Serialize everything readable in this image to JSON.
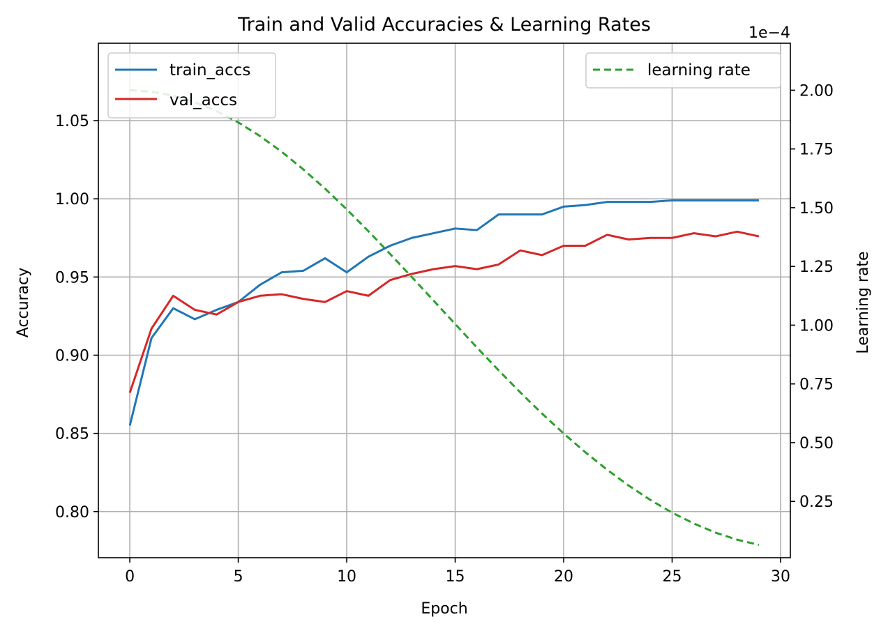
{
  "chart_data": {
    "type": "line",
    "title": "Train and Valid Accuracies & Learning Rates",
    "xlabel": "Epoch",
    "ylabel_left": "Accuracy",
    "ylabel_right": "Learning rate",
    "right_offset_text": "1e−4",
    "xlim": [
      -1.45,
      30.45
    ],
    "ylim_left": [
      0.7705,
      1.0995
    ],
    "ylim_right": [
      1.03e-06,
      0.00022
    ],
    "x_ticks": [
      0,
      5,
      10,
      15,
      20,
      25,
      30
    ],
    "x_tick_labels": [
      "0",
      "5",
      "10",
      "15",
      "20",
      "25",
      "30"
    ],
    "y_left_ticks": [
      0.8,
      0.85,
      0.9,
      0.95,
      1.0,
      1.05
    ],
    "y_left_tick_labels": [
      "0.80",
      "0.85",
      "0.90",
      "0.95",
      "1.00",
      "1.05"
    ],
    "y_right_ticks": [
      2.5e-05,
      5e-05,
      7.5e-05,
      0.0001,
      0.000125,
      0.00015,
      0.000175,
      0.0002
    ],
    "y_right_tick_labels": [
      "0.25",
      "0.50",
      "0.75",
      "1.00",
      "1.25",
      "1.50",
      "1.75",
      "2.00"
    ],
    "grid": true,
    "x": [
      0,
      1,
      2,
      3,
      4,
      5,
      6,
      7,
      8,
      9,
      10,
      11,
      12,
      13,
      14,
      15,
      16,
      17,
      18,
      19,
      20,
      21,
      22,
      23,
      24,
      25,
      26,
      27,
      28,
      29
    ],
    "series": [
      {
        "name": "train_accs",
        "axis": "left",
        "style": "solid",
        "color": "#1f77b4",
        "values": [
          0.855,
          0.911,
          0.93,
          0.923,
          0.929,
          0.934,
          0.945,
          0.953,
          0.954,
          0.962,
          0.953,
          0.963,
          0.97,
          0.975,
          0.978,
          0.981,
          0.98,
          0.99,
          0.99,
          0.99,
          0.995,
          0.996,
          0.998,
          0.998,
          0.998,
          0.999,
          0.999,
          0.999,
          0.999,
          0.999
        ]
      },
      {
        "name": "val_accs",
        "axis": "left",
        "style": "solid",
        "color": "#d62728",
        "values": [
          0.876,
          0.917,
          0.938,
          0.929,
          0.926,
          0.934,
          0.938,
          0.939,
          0.936,
          0.934,
          0.941,
          0.938,
          0.948,
          0.952,
          0.955,
          0.957,
          0.955,
          0.958,
          0.967,
          0.964,
          0.97,
          0.97,
          0.977,
          0.974,
          0.975,
          0.975,
          0.978,
          0.976,
          0.979,
          0.976
        ]
      },
      {
        "name": "learning rate",
        "axis": "right",
        "style": "dashed",
        "color": "#2ca02c",
        "values": [
          0.0002,
          0.0001994,
          0.0001977,
          0.0001949,
          0.0001911,
          0.0001863,
          0.0001805,
          0.0001738,
          0.0001663,
          0.0001581,
          0.0001493,
          0.00014,
          0.0001303,
          0.0001205,
          0.0001105,
          0.0001005,
          9.05e-05,
          8.08e-05,
          7.14e-05,
          6.24e-05,
          5.39e-05,
          4.59e-05,
          3.85e-05,
          3.17e-05,
          2.56e-05,
          2.02e-05,
          1.56e-05,
          1.17e-05,
          8.7e-06,
          6.5e-06
        ]
      }
    ],
    "legend_left_placement": "upper-left",
    "legend_right_placement": "upper-right"
  }
}
